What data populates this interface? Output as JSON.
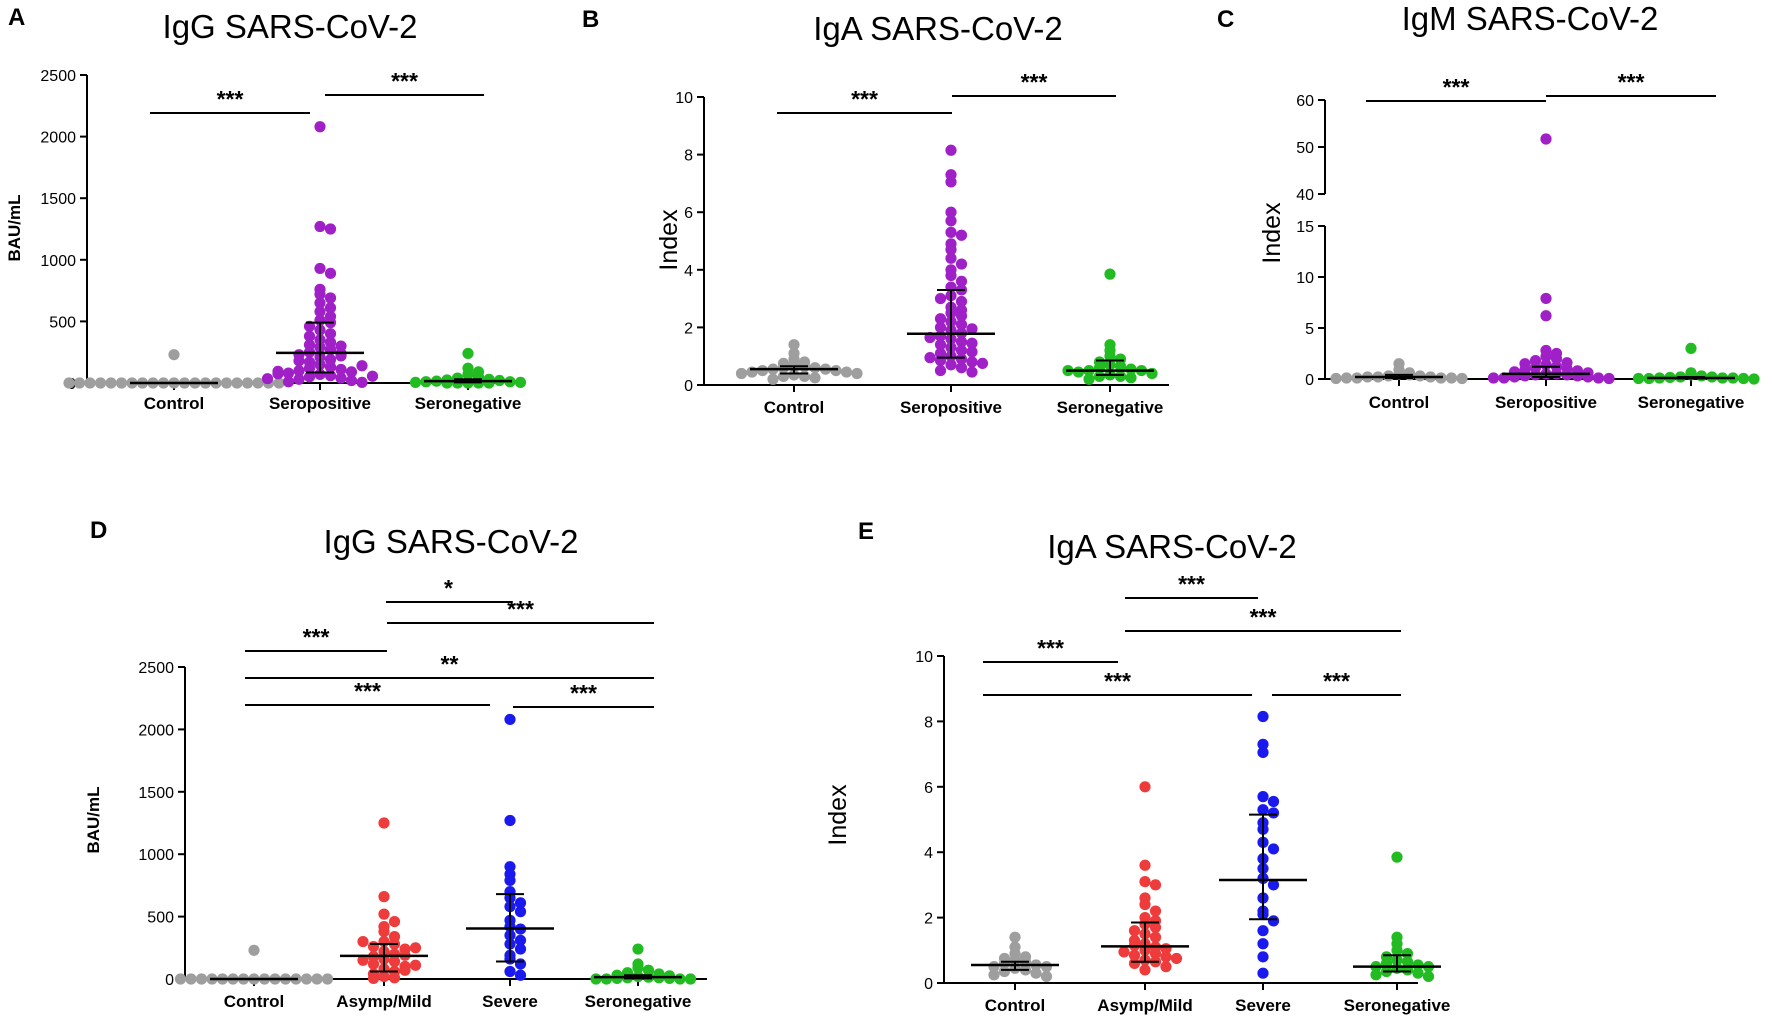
{
  "colors": {
    "Control": "#9e9e9e",
    "Seropositive": "#a020c8",
    "Seronegative": "#22bb22",
    "Asymp/Mild": "#ee3b3b",
    "Severe": "#1a1aee"
  },
  "chart_data": [
    {
      "letter": "A",
      "type": "scatter",
      "title": "IgG SARS-CoV-2",
      "ylabel": "BAU/mL",
      "ylim": [
        0,
        2500
      ],
      "yticks": [
        "0",
        "500",
        "1000",
        "1500",
        "2000",
        "2500"
      ],
      "categories": [
        "Control",
        "Seropositive",
        "Seronegative"
      ],
      "medians": [
        0,
        245,
        15
      ],
      "iqr": [
        [
          0,
          0
        ],
        [
          85,
          490
        ],
        [
          5,
          30
        ]
      ],
      "points": [
        [
          230,
          0,
          0,
          0,
          0,
          0,
          0,
          0,
          0,
          0,
          0,
          0,
          0,
          0,
          0,
          0,
          0,
          0,
          0,
          0,
          0,
          0
        ],
        [
          2080,
          1270,
          1250,
          930,
          890,
          760,
          720,
          690,
          650,
          610,
          580,
          540,
          510,
          490,
          460,
          430,
          400,
          380,
          350,
          330,
          310,
          290,
          270,
          250,
          240,
          230,
          210,
          190,
          170,
          150,
          130,
          120,
          110,
          100,
          90,
          80,
          70,
          60,
          50,
          40,
          30,
          20,
          10,
          5,
          300,
          220,
          180,
          140,
          95,
          75,
          55,
          35
        ],
        [
          240,
          120,
          90,
          70,
          50,
          40,
          30,
          25,
          20,
          15,
          10,
          10,
          5,
          5,
          0,
          0,
          0,
          0,
          0
        ]
      ],
      "significance": [
        {
          "pair": [
            0,
            1
          ],
          "label": "***"
        },
        {
          "pair": [
            1,
            2
          ],
          "label": "***"
        }
      ]
    },
    {
      "letter": "B",
      "type": "scatter",
      "title": "IgA SARS-CoV-2",
      "ylabel": "Index",
      "ylim": [
        0,
        10
      ],
      "yticks": [
        "0",
        "2",
        "4",
        "6",
        "8",
        "10"
      ],
      "categories": [
        "Control",
        "Seropositive",
        "Seronegative"
      ],
      "medians": [
        0.55,
        1.78,
        0.5
      ],
      "iqr": [
        [
          0.4,
          0.65
        ],
        [
          0.95,
          3.3
        ],
        [
          0.35,
          0.85
        ]
      ],
      "points": [
        [
          1.4,
          1.1,
          0.9,
          0.8,
          0.75,
          0.7,
          0.65,
          0.6,
          0.6,
          0.55,
          0.55,
          0.5,
          0.5,
          0.45,
          0.45,
          0.4,
          0.4,
          0.35,
          0.3,
          0.3,
          0.25,
          0.2
        ],
        [
          8.15,
          7.3,
          7.05,
          6.0,
          5.7,
          5.3,
          5.2,
          4.9,
          4.7,
          4.4,
          4.2,
          4.0,
          3.8,
          3.6,
          3.4,
          3.3,
          3.1,
          2.9,
          2.7,
          2.5,
          2.4,
          2.2,
          2.1,
          2.0,
          1.9,
          1.8,
          1.7,
          1.6,
          1.5,
          1.4,
          1.3,
          1.2,
          1.1,
          1.0,
          0.9,
          0.85,
          0.8,
          0.7,
          0.6,
          0.5,
          0.45,
          2.3,
          1.95,
          1.45,
          1.15,
          0.95,
          0.75,
          3.0,
          2.6,
          1.65
        ],
        [
          3.85,
          1.4,
          1.2,
          1.0,
          0.9,
          0.8,
          0.7,
          0.65,
          0.6,
          0.55,
          0.5,
          0.5,
          0.45,
          0.4,
          0.35,
          0.3,
          0.3,
          0.25,
          0.2,
          0.5
        ]
      ],
      "significance": [
        {
          "pair": [
            0,
            1
          ],
          "label": "***"
        },
        {
          "pair": [
            1,
            2
          ],
          "label": "***"
        }
      ]
    },
    {
      "letter": "C",
      "type": "scatter",
      "title": "IgM SARS-CoV-2",
      "ylabel": "Index",
      "ylim": [
        0,
        60
      ],
      "axis_break": [
        15,
        40
      ],
      "yticks": [
        "0",
        "5",
        "10",
        "15",
        "40",
        "50",
        "60"
      ],
      "categories": [
        "Control",
        "Seropositive",
        "Seronegative"
      ],
      "medians": [
        0.2,
        0.5,
        0.1
      ],
      "iqr": [
        [
          0.1,
          0.4
        ],
        [
          0.2,
          1.2
        ],
        [
          0.05,
          0.2
        ]
      ],
      "points": [
        [
          1.5,
          0.9,
          0.6,
          0.5,
          0.4,
          0.3,
          0.3,
          0.2,
          0.2,
          0.2,
          0.1,
          0.1,
          0.1,
          0.1,
          0.05,
          0.05
        ],
        [
          51.7,
          7.9,
          6.2,
          2.8,
          2.5,
          2.2,
          2.0,
          1.8,
          1.6,
          1.5,
          1.4,
          1.2,
          1.1,
          1.0,
          0.9,
          0.8,
          0.7,
          0.6,
          0.5,
          0.5,
          0.4,
          0.4,
          0.3,
          0.3,
          0.2,
          0.2,
          0.1,
          0.1,
          0.1,
          0.05
        ],
        [
          3.0,
          0.6,
          0.4,
          0.3,
          0.2,
          0.2,
          0.15,
          0.1,
          0.1,
          0.1,
          0.05,
          0.05,
          0.05,
          0.0
        ]
      ],
      "significance": [
        {
          "pair": [
            0,
            1
          ],
          "label": "***"
        },
        {
          "pair": [
            1,
            2
          ],
          "label": "***"
        }
      ]
    },
    {
      "letter": "D",
      "type": "scatter",
      "title": "IgG SARS-CoV-2",
      "ylabel": "BAU/mL",
      "ylim": [
        0,
        2500
      ],
      "yticks": [
        "0",
        "500",
        "1000",
        "1500",
        "2000",
        "2500"
      ],
      "categories": [
        "Control",
        "Asymp/Mild",
        "Severe",
        "Seronegative"
      ],
      "medians": [
        0,
        185,
        405,
        15
      ],
      "iqr": [
        [
          0,
          0
        ],
        [
          60,
          280
        ],
        [
          140,
          680
        ],
        [
          5,
          30
        ]
      ],
      "points": [
        [
          230,
          0,
          0,
          0,
          0,
          0,
          0,
          0,
          0,
          0,
          0,
          0,
          0,
          0,
          0,
          0
        ],
        [
          1250,
          660,
          520,
          460,
          420,
          380,
          340,
          300,
          280,
          260,
          240,
          220,
          200,
          180,
          160,
          140,
          120,
          100,
          80,
          60,
          40,
          20,
          10,
          5,
          300,
          250,
          190,
          150,
          110,
          70
        ],
        [
          2080,
          1270,
          900,
          840,
          790,
          700,
          650,
          610,
          580,
          540,
          470,
          420,
          400,
          350,
          310,
          280,
          240,
          190,
          160,
          120,
          60,
          30
        ],
        [
          240,
          120,
          90,
          70,
          50,
          40,
          30,
          25,
          20,
          15,
          10,
          10,
          5,
          5,
          0,
          0,
          0,
          0
        ]
      ],
      "significance": [
        {
          "pair": [
            1,
            2
          ],
          "label": "*"
        },
        {
          "pair": [
            0,
            1
          ],
          "label": "***"
        },
        {
          "pair": [
            1,
            3
          ],
          "label": "***"
        },
        {
          "pair": [
            0,
            3
          ],
          "label": "**"
        },
        {
          "pair": [
            0,
            2
          ],
          "label": "***"
        },
        {
          "pair": [
            2,
            3
          ],
          "label": "***"
        }
      ]
    },
    {
      "letter": "E",
      "type": "scatter",
      "title": "IgA SARS-CoV-2",
      "ylabel": "Index",
      "ylim": [
        0,
        10
      ],
      "yticks": [
        "0",
        "2",
        "4",
        "6",
        "8",
        "10"
      ],
      "categories": [
        "Control",
        "Asymp/Mild",
        "Severe",
        "Seronegative"
      ],
      "medians": [
        0.55,
        1.12,
        3.15,
        0.5
      ],
      "iqr": [
        [
          0.4,
          0.65
        ],
        [
          0.65,
          1.85
        ],
        [
          1.95,
          5.15
        ],
        [
          0.35,
          0.85
        ]
      ],
      "points": [
        [
          1.4,
          1.1,
          0.9,
          0.8,
          0.75,
          0.7,
          0.65,
          0.6,
          0.55,
          0.5,
          0.5,
          0.45,
          0.4,
          0.35,
          0.3,
          0.25,
          0.2
        ],
        [
          6.0,
          3.6,
          3.1,
          3.0,
          2.6,
          2.4,
          2.2,
          2.0,
          1.9,
          1.8,
          1.7,
          1.6,
          1.5,
          1.4,
          1.3,
          1.2,
          1.1,
          1.0,
          0.9,
          0.85,
          0.8,
          0.7,
          0.65,
          0.6,
          0.5,
          0.4,
          1.15,
          1.05,
          0.95,
          0.75
        ],
        [
          8.15,
          7.3,
          7.05,
          5.7,
          5.55,
          5.3,
          5.2,
          4.9,
          4.7,
          4.3,
          4.1,
          3.8,
          3.5,
          3.2,
          3.0,
          2.6,
          2.2,
          2.1,
          1.9,
          1.6,
          1.2,
          0.8,
          0.3
        ],
        [
          3.85,
          1.4,
          1.2,
          1.0,
          0.9,
          0.8,
          0.7,
          0.65,
          0.6,
          0.55,
          0.5,
          0.5,
          0.45,
          0.4,
          0.35,
          0.3,
          0.25,
          0.2
        ]
      ],
      "significance": [
        {
          "pair": [
            1,
            2
          ],
          "label": "***"
        },
        {
          "pair": [
            1,
            3
          ],
          "label": "***"
        },
        {
          "pair": [
            0,
            1
          ],
          "label": "***"
        },
        {
          "pair": [
            0,
            2
          ],
          "label": "***"
        },
        {
          "pair": [
            2,
            3
          ],
          "label": "***"
        }
      ]
    }
  ]
}
